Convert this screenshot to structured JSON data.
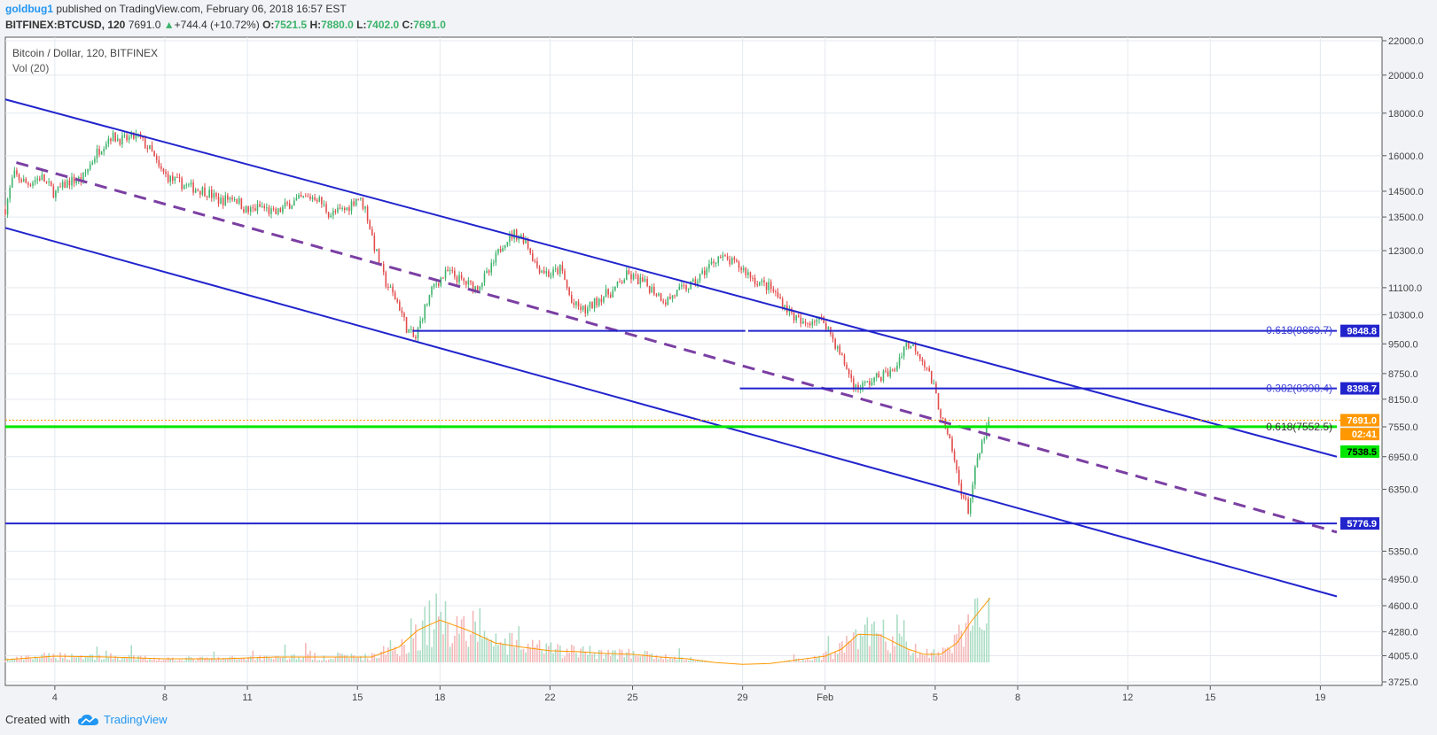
{
  "header": {
    "author": "goldbug1",
    "published_text": "published on TradingView.com, February 06, 2018 16:57 EST",
    "symbol": "BITFINEX:BTCUSD, 120",
    "last": "7691.0",
    "change": "+744.4 (+10.72%)",
    "o_label": "O:",
    "o_val": "7521.5",
    "h_label": "H:",
    "h_val": "7880.0",
    "l_label": "L:",
    "l_val": "7402.0",
    "c_label": "C:",
    "c_val": "7691.0"
  },
  "chart_data": {
    "type": "candlestick",
    "title": "Bitcoin / Dollar, 120, BITFINEX",
    "indicator": "Vol (20)",
    "y_scale": "log",
    "ylim": [
      3725,
      22000
    ],
    "y_ticks": [
      "22000.0",
      "20000.0",
      "18000.0",
      "16000.0",
      "14500.0",
      "13500.0",
      "12300.0",
      "11100.0",
      "10300.0",
      "9500.0",
      "8750.0",
      "8150.0",
      "7550.0",
      "6950.0",
      "6350.0",
      "5350.0",
      "4950.0",
      "4600.0",
      "4280.0",
      "4005.0",
      "3725.0"
    ],
    "x_ticks": [
      {
        "label": "4",
        "day": 4
      },
      {
        "label": "8",
        "day": 8
      },
      {
        "label": "11",
        "day": 11
      },
      {
        "label": "15",
        "day": 15
      },
      {
        "label": "18",
        "day": 18
      },
      {
        "label": "22",
        "day": 22
      },
      {
        "label": "25",
        "day": 25
      },
      {
        "label": "29",
        "day": 29
      },
      {
        "label": "Feb",
        "day": 32
      },
      {
        "label": "5",
        "day": 36
      },
      {
        "label": "8",
        "day": 39
      },
      {
        "label": "12",
        "day": 43
      },
      {
        "label": "15",
        "day": 46
      },
      {
        "label": "19",
        "day": 50
      }
    ],
    "xlim": [
      2.2,
      50.6
    ],
    "price_path": [
      [
        2.2,
        13800
      ],
      [
        2.5,
        15200
      ],
      [
        3,
        14800
      ],
      [
        3.5,
        15100
      ],
      [
        4,
        14400
      ],
      [
        4.5,
        14900
      ],
      [
        5,
        15000
      ],
      [
        5.5,
        16100
      ],
      [
        6,
        16900
      ],
      [
        6.5,
        16700
      ],
      [
        7,
        16900
      ],
      [
        7.5,
        16200
      ],
      [
        7.8,
        15400
      ],
      [
        8.2,
        15000
      ],
      [
        8.8,
        14700
      ],
      [
        9.5,
        14500
      ],
      [
        10,
        14100
      ],
      [
        10.5,
        14300
      ],
      [
        11,
        13700
      ],
      [
        11.5,
        13900
      ],
      [
        12,
        13600
      ],
      [
        12.5,
        14000
      ],
      [
        13,
        14200
      ],
      [
        13.5,
        14300
      ],
      [
        14,
        13600
      ],
      [
        14.6,
        13800
      ],
      [
        15,
        14300
      ],
      [
        15.3,
        13800
      ],
      [
        15.6,
        12500
      ],
      [
        16,
        11300
      ],
      [
        16.5,
        10600
      ],
      [
        16.8,
        9900
      ],
      [
        17.1,
        9600
      ],
      [
        17.4,
        10400
      ],
      [
        17.8,
        11200
      ],
      [
        18.3,
        11600
      ],
      [
        18.8,
        11300
      ],
      [
        19.3,
        11100
      ],
      [
        19.8,
        11600
      ],
      [
        20.3,
        12600
      ],
      [
        20.7,
        12900
      ],
      [
        21.1,
        12700
      ],
      [
        21.5,
        11800
      ],
      [
        22,
        11500
      ],
      [
        22.4,
        11700
      ],
      [
        22.8,
        10600
      ],
      [
        23.3,
        10400
      ],
      [
        23.8,
        10800
      ],
      [
        24.3,
        11000
      ],
      [
        24.8,
        11500
      ],
      [
        25.3,
        11300
      ],
      [
        25.8,
        11000
      ],
      [
        26.2,
        10700
      ],
      [
        26.7,
        11000
      ],
      [
        27.2,
        11200
      ],
      [
        27.7,
        11700
      ],
      [
        28.1,
        12100
      ],
      [
        28.6,
        11900
      ],
      [
        29,
        11700
      ],
      [
        29.5,
        11300
      ],
      [
        30,
        11100
      ],
      [
        30.4,
        10700
      ],
      [
        30.8,
        10300
      ],
      [
        31.2,
        10000
      ],
      [
        31.6,
        10200
      ],
      [
        32,
        10100
      ],
      [
        32.3,
        9600
      ],
      [
        32.7,
        9000
      ],
      [
        33.1,
        8400
      ],
      [
        33.5,
        8500
      ],
      [
        34,
        8700
      ],
      [
        34.5,
        8800
      ],
      [
        34.9,
        9500
      ],
      [
        35.3,
        9400
      ],
      [
        35.7,
        8900
      ],
      [
        36,
        8300
      ],
      [
        36.3,
        7600
      ],
      [
        36.6,
        7100
      ],
      [
        36.9,
        6400
      ],
      [
        37.2,
        6000
      ],
      [
        37.5,
        6800
      ],
      [
        37.8,
        7400
      ],
      [
        38.0,
        7691
      ]
    ],
    "volume_ma": [
      [
        2.2,
        3960
      ],
      [
        4,
        4000
      ],
      [
        6,
        3990
      ],
      [
        8,
        3970
      ],
      [
        10,
        3970
      ],
      [
        12,
        3990
      ],
      [
        14,
        3990
      ],
      [
        15.5,
        3990
      ],
      [
        16.5,
        4100
      ],
      [
        17.2,
        4300
      ],
      [
        18,
        4420
      ],
      [
        19,
        4300
      ],
      [
        20,
        4150
      ],
      [
        21,
        4100
      ],
      [
        22,
        4060
      ],
      [
        23,
        4050
      ],
      [
        24,
        4030
      ],
      [
        25,
        4020
      ],
      [
        26,
        3990
      ],
      [
        27,
        3970
      ],
      [
        28,
        3930
      ],
      [
        29,
        3910
      ],
      [
        30,
        3920
      ],
      [
        31,
        3960
      ],
      [
        32,
        4000
      ],
      [
        32.6,
        4080
      ],
      [
        33.2,
        4250
      ],
      [
        34,
        4240
      ],
      [
        35,
        4080
      ],
      [
        35.6,
        4020
      ],
      [
        36.2,
        4020
      ],
      [
        36.8,
        4150
      ],
      [
        37.3,
        4400
      ],
      [
        38,
        4700
      ]
    ],
    "annotations": [
      {
        "text": "0.618(9860.7)",
        "price": 9860.7
      },
      {
        "text": "0.382(8398.4)",
        "price": 8398.4
      },
      {
        "text": "0.618(7552.5)",
        "price": 7552.5
      }
    ],
    "price_labels": [
      {
        "text": "9848.8",
        "price": 9848.8,
        "color": "#2124cc"
      },
      {
        "text": "8398.7",
        "price": 8398.7,
        "color": "#2124cc"
      },
      {
        "text": "7691.0",
        "price": 7691.0,
        "color": "#ff9800"
      },
      {
        "text": "02:41",
        "price": 7400,
        "color": "#ff9800"
      },
      {
        "text": "7538.5",
        "price": 7050,
        "color": "#00e600"
      },
      {
        "text": "5776.9",
        "price": 5776.9,
        "color": "#2124cc"
      }
    ],
    "channel_lines": [
      {
        "p1": [
          2.2,
          18700
        ],
        "p2": [
          50.6,
          6950
        ],
        "color": "#2124cc"
      },
      {
        "p1": [
          2.2,
          13100
        ],
        "p2": [
          50.6,
          4720
        ],
        "color": "#2124cc"
      }
    ],
    "midline": {
      "p1": [
        2.6,
        15700
      ],
      "p2": [
        50.6,
        5640
      ],
      "color": "#7b3fa3"
    },
    "hlines": [
      {
        "price": 9848.8,
        "x_from": 17.0,
        "x_to": 29.1,
        "color": "#2124cc"
      },
      {
        "price": 9848.8,
        "x_from": 29.2,
        "x_to": 50.6,
        "color": "#2124cc"
      },
      {
        "price": 8398.7,
        "x_from": 28.9,
        "x_to": 50.6,
        "color": "#2124cc"
      },
      {
        "price": 7552.5,
        "x_from": 2.2,
        "x_to": 50.6,
        "color": "#00e600"
      },
      {
        "price": 5776.9,
        "x_from": 2.2,
        "x_to": 50.6,
        "color": "#2124cc"
      }
    ],
    "colors": {
      "up": "#3db36b",
      "down": "#e34a4a",
      "vol_up": "#a9dcc3",
      "vol_down": "#f4b6b6",
      "ma": "#ff9800",
      "grid": "#e4e9ef"
    }
  },
  "footer": {
    "created_with": "Created with",
    "brand": "TradingView"
  },
  "icons": {
    "tradingview": "cloud-logo-icon"
  }
}
